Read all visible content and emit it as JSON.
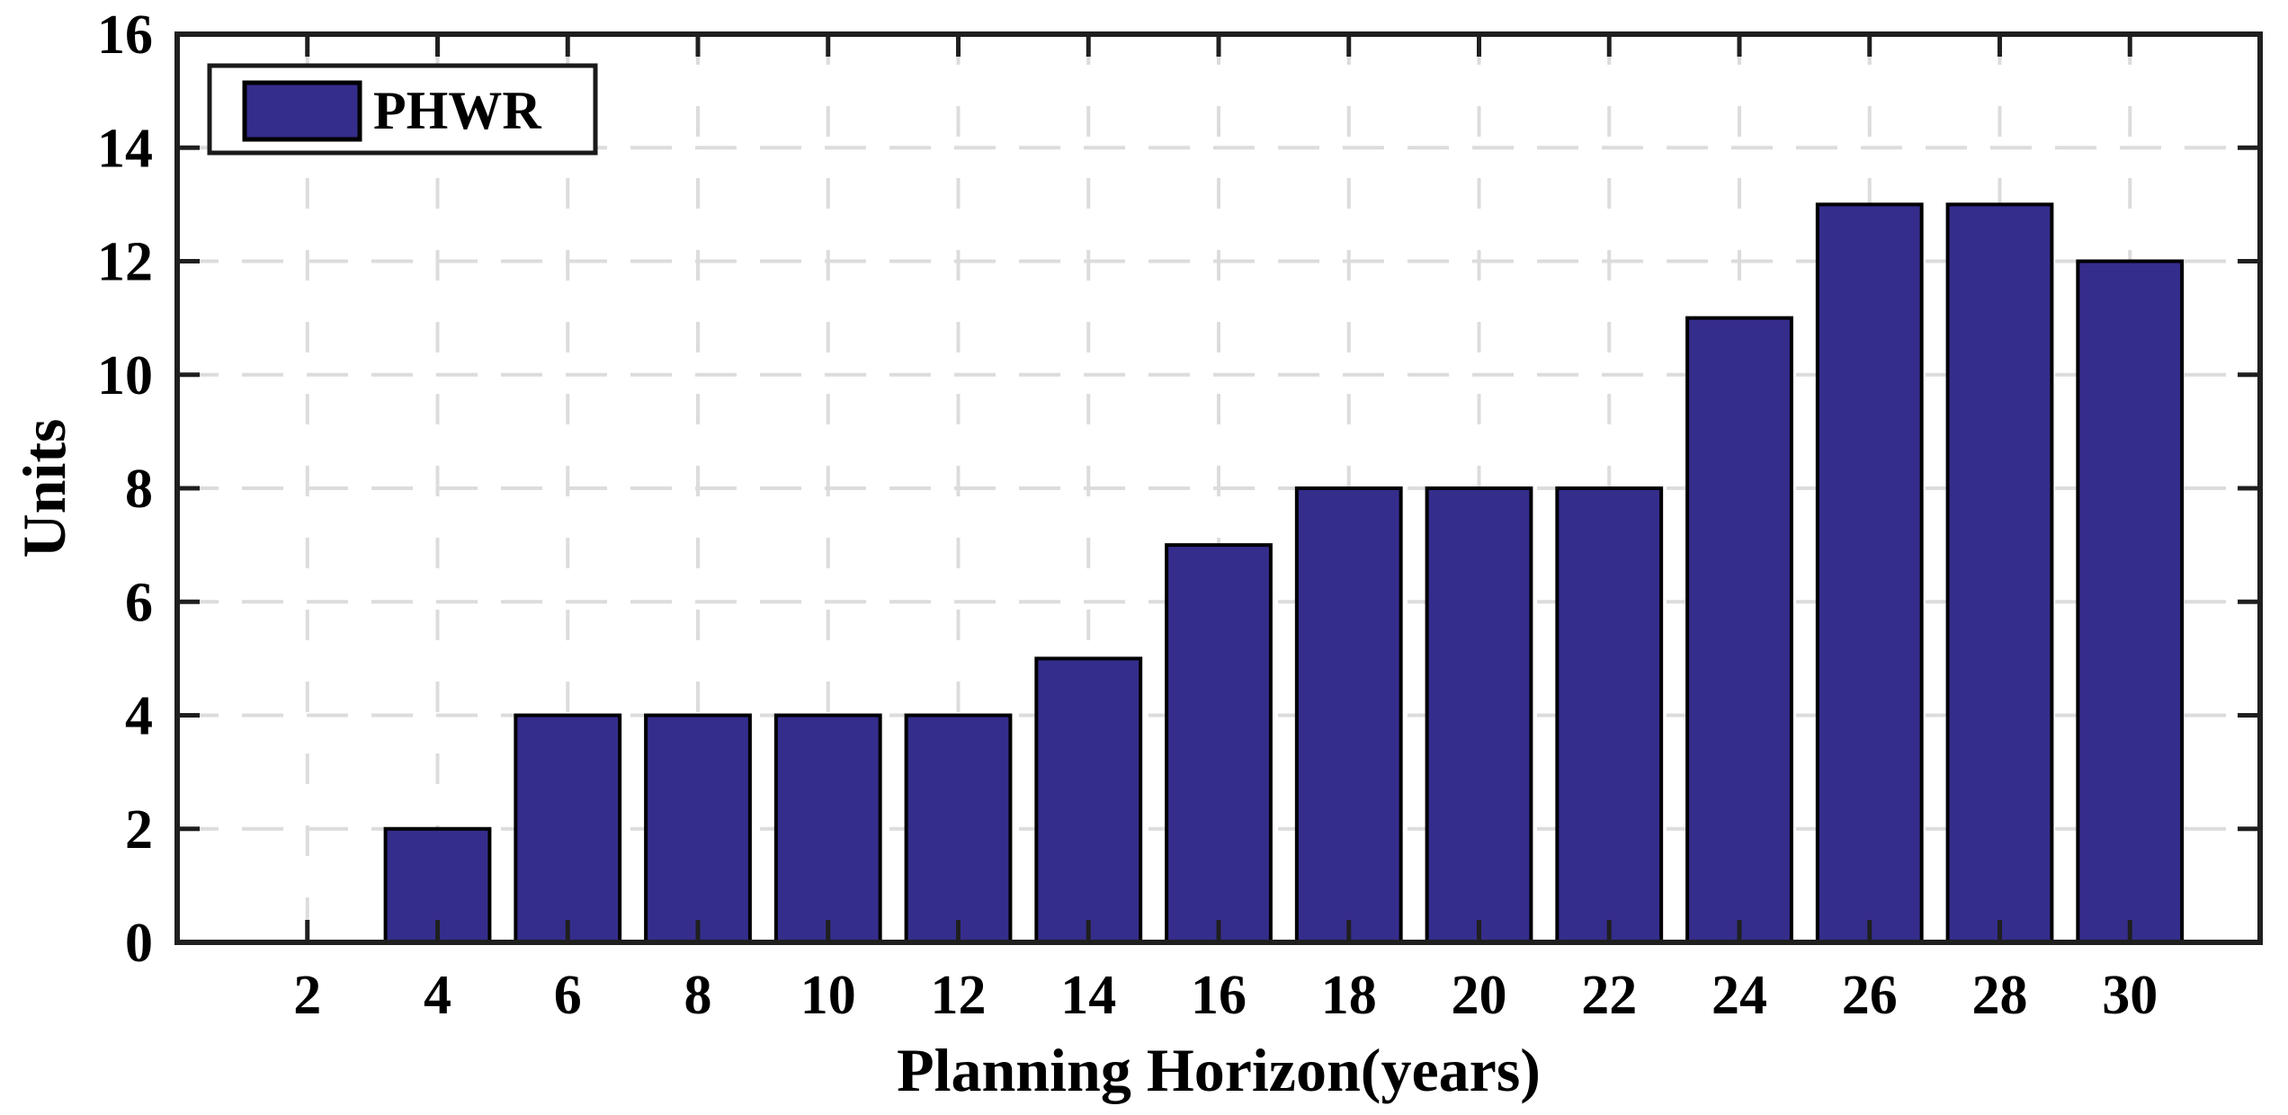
{
  "figure": {
    "background_color": "#ffffff",
    "axes_color": "#1f1f1f",
    "grid_color": "#dcdcdc",
    "text_color": "#000000"
  },
  "chart_data": {
    "type": "bar",
    "title": "",
    "xlabel": "Planning Horizon(years)",
    "ylabel": "Units",
    "series": [
      {
        "name": "PHWR",
        "color": "#352D8C",
        "edge_color": "#000000",
        "x": [
          4,
          6,
          8,
          10,
          12,
          14,
          16,
          18,
          20,
          22,
          24,
          26,
          28,
          30
        ],
        "values": [
          2,
          4,
          4,
          4,
          4,
          5,
          7,
          8,
          8,
          8,
          11,
          13,
          13,
          12
        ]
      }
    ],
    "bar_width": 1.6,
    "xlim": [
      0,
      32
    ],
    "ylim": [
      0,
      16
    ],
    "xticks": [
      2,
      4,
      6,
      8,
      10,
      12,
      14,
      16,
      18,
      20,
      22,
      24,
      26,
      28,
      30
    ],
    "yticks": [
      0,
      2,
      4,
      6,
      8,
      10,
      12,
      14,
      16
    ],
    "grid": "dashed",
    "legend": {
      "label": "PHWR",
      "position": "northwest"
    }
  }
}
